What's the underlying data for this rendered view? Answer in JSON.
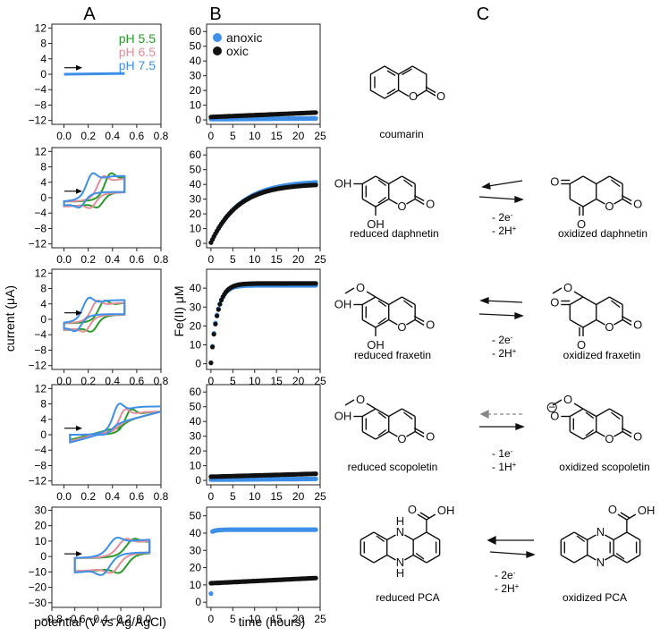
{
  "panels": {
    "a": "A",
    "b": "B",
    "c": "C"
  },
  "colors": {
    "ph55": "#2a9a2a",
    "ph65": "#e28f9b",
    "ph75": "#3d8fe8",
    "anoxic": "#3d8fe8",
    "oxic": "#111111"
  },
  "labels": {
    "a_ylabel": "current  (μA)",
    "a_xlabel": "potential (V vs Ag/AgCl)",
    "b_ylabel": "Fe(II) μM",
    "b_xlabel": "time (hours)"
  },
  "legend_a": [
    "pH 5.5",
    "pH 6.5",
    "pH 7.5"
  ],
  "legend_b": [
    "anoxic",
    "oxic"
  ],
  "chart_data": [
    {
      "type": "line",
      "panel": "A",
      "row": 1,
      "xlim": [
        -0.1,
        0.8
      ],
      "ylim": [
        -13,
        13
      ],
      "xticks": [
        "0.0",
        "0.2",
        "0.4",
        "0.6",
        "0.8"
      ],
      "yticks": [
        "12",
        "8",
        "4",
        "0",
        "−4",
        "−8",
        "−12"
      ],
      "series": [
        {
          "name": "pH 7.5",
          "x": [
            0.0,
            0.5
          ],
          "y": [
            0,
            0.2
          ]
        }
      ]
    },
    {
      "type": "line",
      "panel": "A",
      "row": 2,
      "xlim": [
        -0.1,
        0.8
      ],
      "ylim": [
        -13,
        13
      ],
      "xticks": [
        "0.0",
        "0.2",
        "0.4",
        "0.6",
        "0.8"
      ],
      "yticks": [
        "12",
        "8",
        "4",
        "0",
        "−4",
        "−8",
        "−12"
      ],
      "series": [
        {
          "name": "pH 5.5",
          "E0": 0.33,
          "ipa": 10,
          "ipc": -5.5
        },
        {
          "name": "pH 6.5",
          "E0": 0.27,
          "ipa": 9,
          "ipc": -5.5
        },
        {
          "name": "pH 7.5",
          "E0": 0.18,
          "ipa": 10,
          "ipc": -5.5
        }
      ]
    },
    {
      "type": "line",
      "panel": "A",
      "row": 3,
      "xlim": [
        -0.1,
        0.8
      ],
      "ylim": [
        -13,
        13
      ],
      "xticks": [
        "0.0",
        "0.2",
        "0.4",
        "0.6",
        "0.8"
      ],
      "yticks": [
        "12",
        "8",
        "4",
        "0",
        "−4",
        "−8",
        "−12"
      ],
      "series": [
        {
          "name": "pH 5.5",
          "E0": 0.28,
          "ipa": 8,
          "ipc": -6
        },
        {
          "name": "pH 6.5",
          "E0": 0.22,
          "ipa": 8,
          "ipc": -6
        },
        {
          "name": "pH 7.5",
          "E0": 0.15,
          "ipa": 9,
          "ipc": -6
        }
      ]
    },
    {
      "type": "line",
      "panel": "A",
      "row": 4,
      "xlim": [
        -0.1,
        0.8
      ],
      "ylim": [
        -13,
        13
      ],
      "xticks": [
        "0.0",
        "0.2",
        "0.4",
        "0.6",
        "0.8"
      ],
      "yticks": [
        "12",
        "8",
        "4",
        "0",
        "−4",
        "−8",
        "−12"
      ],
      "series": [
        {
          "name": "pH 5.5",
          "E0": 0.5,
          "ipa": 9,
          "ipc": -2
        },
        {
          "name": "pH 6.5",
          "E0": 0.45,
          "ipa": 9,
          "ipc": -2.5
        },
        {
          "name": "pH 7.5",
          "E0": 0.4,
          "ipa": 11,
          "ipc": -3
        }
      ]
    },
    {
      "type": "line",
      "panel": "A",
      "row": 5,
      "xlim": [
        -0.8,
        0.15
      ],
      "ylim": [
        -33,
        32
      ],
      "xticks": [
        "−0.8",
        "−0.6",
        "−0.4",
        "−0.2",
        "0.0"
      ],
      "yticks": [
        "30",
        "20",
        "10",
        "0",
        "−10",
        "−20",
        "−30"
      ],
      "series": [
        {
          "name": "pH 5.5",
          "E0": -0.15,
          "ipa": 17,
          "ipc": -18
        },
        {
          "name": "pH 6.5",
          "E0": -0.22,
          "ipa": 17,
          "ipc": -18
        },
        {
          "name": "pH 7.5",
          "E0": -0.3,
          "ipa": 18,
          "ipc": -20
        }
      ]
    },
    {
      "type": "scatter",
      "panel": "B",
      "row": 1,
      "xlim": [
        -1,
        25
      ],
      "ylim": [
        -3,
        65
      ],
      "xticks": [
        "0",
        "5",
        "10",
        "15",
        "20",
        "25"
      ],
      "yticks": [
        "0",
        "10",
        "20",
        "30",
        "40",
        "50",
        "60"
      ],
      "series": [
        {
          "name": "anoxic",
          "start": 0.5,
          "end": 1
        },
        {
          "name": "oxic",
          "start": 2,
          "end": 5
        }
      ]
    },
    {
      "type": "scatter",
      "panel": "B",
      "row": 2,
      "xlim": [
        -1,
        25
      ],
      "ylim": [
        -3,
        65
      ],
      "xticks": [
        "0",
        "5",
        "10",
        "15",
        "20",
        "25"
      ],
      "yticks": [
        "0",
        "10",
        "20",
        "30",
        "40",
        "50",
        "60"
      ],
      "series": [
        {
          "name": "anoxic",
          "plateau": 42,
          "rate": 0.15
        },
        {
          "name": "oxic",
          "plateau": 40,
          "rate": 0.16
        }
      ]
    },
    {
      "type": "scatter",
      "panel": "B",
      "row": 3,
      "xlim": [
        -1,
        25
      ],
      "ylim": [
        -3,
        50
      ],
      "xticks": [
        "0",
        "5",
        "10",
        "15",
        "20",
        "25"
      ],
      "yticks": [
        "0",
        "10",
        "20",
        "30",
        "40"
      ],
      "series": [
        {
          "name": "anoxic",
          "plateau": 41,
          "rate": 0.7
        },
        {
          "name": "oxic",
          "plateau": 42,
          "rate": 0.65
        }
      ]
    },
    {
      "type": "scatter",
      "panel": "B",
      "row": 4,
      "xlim": [
        -1,
        25
      ],
      "ylim": [
        -3,
        65
      ],
      "xticks": [
        "0",
        "5",
        "10",
        "15",
        "20",
        "25"
      ],
      "yticks": [
        "0",
        "10",
        "20",
        "30",
        "40",
        "50",
        "60"
      ],
      "series": [
        {
          "name": "anoxic",
          "start": 0.5,
          "end": 1
        },
        {
          "name": "oxic",
          "start": 2.5,
          "end": 4.5
        }
      ]
    },
    {
      "type": "scatter",
      "panel": "B",
      "row": 5,
      "xlim": [
        -1,
        25
      ],
      "ylim": [
        -3,
        55
      ],
      "xticks": [
        "0",
        "5",
        "10",
        "15",
        "20",
        "25"
      ],
      "yticks": [
        "0",
        "10",
        "20",
        "30",
        "40",
        "50"
      ],
      "series": [
        {
          "name": "anoxic",
          "plateau": 42,
          "first": 5
        },
        {
          "name": "oxic",
          "start": 11,
          "end": 14
        }
      ]
    }
  ],
  "molecules": {
    "coumarin": "coumarin",
    "reduced_daphnetin": "reduced daphnetin",
    "oxidized_daphnetin": "oxidized daphnetin",
    "reduced_fraxetin": "reduced fraxetin",
    "oxidized_fraxetin": "oxidized fraxetin",
    "reduced_scopoletin": "reduced scopoletin",
    "oxidized_scopoletin": "oxidized scopoletin",
    "reduced_pca": "reduced PCA",
    "oxidized_pca": "oxidized PCA"
  },
  "reactions": {
    "r2": [
      "- 2e",
      "- 2H"
    ],
    "r3": [
      "- 2e",
      "- 2H"
    ],
    "r4": [
      "- 1e",
      "- 1H"
    ],
    "r5": [
      "- 2e",
      "- 2H"
    ]
  },
  "atoms": {
    "O": "O",
    "OH": "OH",
    "H": "H",
    "N": "N",
    "minus": "−",
    "plus": "+",
    "sup_minus": "-"
  }
}
